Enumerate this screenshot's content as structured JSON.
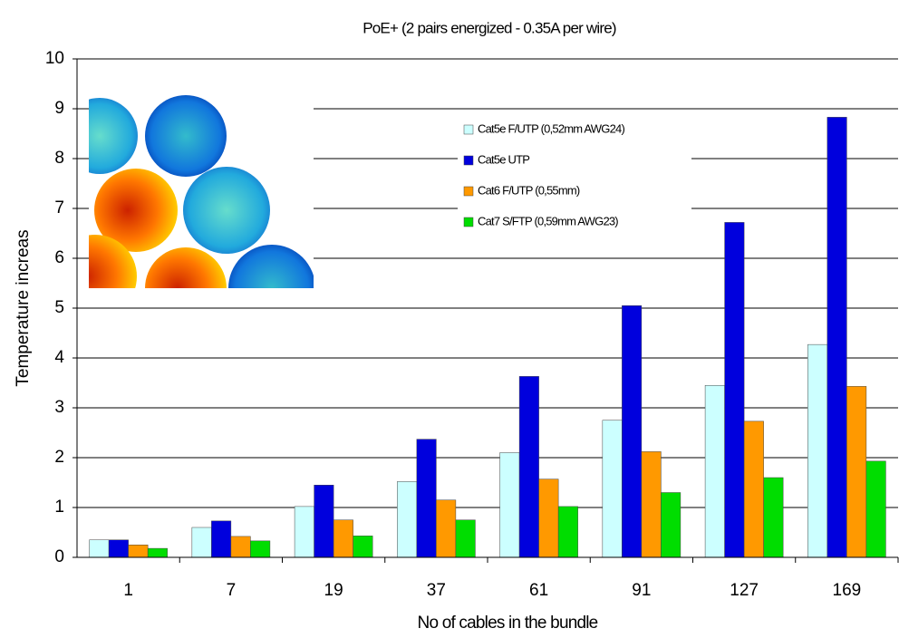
{
  "chart_data": {
    "type": "bar",
    "title": "PoE+  (2 pairs energized - 0.35A per wire)",
    "x_label": "No of cables in the bundle",
    "y_label": "Temperature increas",
    "categories": [
      "1",
      "7",
      "19",
      "37",
      "61",
      "91",
      "127",
      "169"
    ],
    "series": [
      {
        "name": "Cat5e  F/UTP (0,52mm AWG24)",
        "color": "#ccffff",
        "values": [
          0.35,
          0.6,
          1.02,
          1.52,
          2.1,
          2.75,
          3.45,
          4.27
        ]
      },
      {
        "name": "Cat5e UTP",
        "color": "#0000dd",
        "values": [
          0.35,
          0.73,
          1.45,
          2.37,
          3.63,
          5.05,
          6.72,
          8.83
        ]
      },
      {
        "name": "Cat6 F/UTP (0,55mm)",
        "color": "#ff9900",
        "values": [
          0.25,
          0.42,
          0.75,
          1.15,
          1.57,
          2.12,
          2.73,
          3.43
        ]
      },
      {
        "name": "Cat7 S/FTP (0,59mm AWG23)",
        "color": "#00dd00",
        "values": [
          0.18,
          0.33,
          0.43,
          0.75,
          1.02,
          1.3,
          1.6,
          1.93
        ]
      }
    ],
    "ylim": [
      0,
      10
    ],
    "yticks": [
      0,
      1,
      2,
      3,
      4,
      5,
      6,
      7,
      8,
      9,
      10
    ],
    "grid": true
  }
}
